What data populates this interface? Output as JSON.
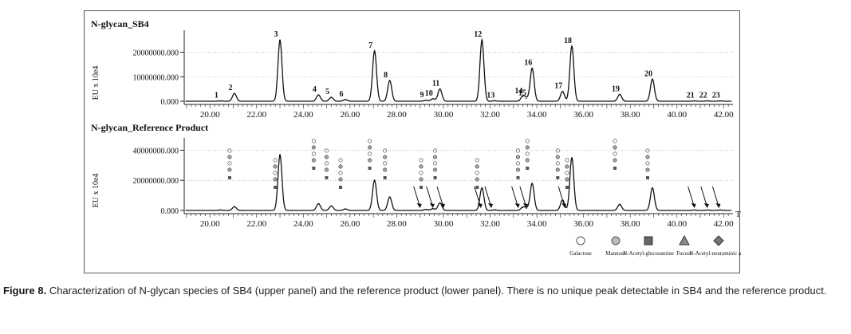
{
  "caption": {
    "figure_label": "Figure 8.",
    "text": "Characterization of N-glycan species of SB4 (upper panel) and the reference product (lower panel). There is no unique peak detectable in SB4 and the reference product."
  },
  "chart_data": [
    {
      "type": "line",
      "title": "N-glycan_SB4",
      "ylabel": "EU x 10e4",
      "xlabel": "",
      "xlim": [
        18.9,
        42.4
      ],
      "ylim": [
        0,
        27000000
      ],
      "yticks": [
        "0.000",
        "10000000.000",
        "20000000.000"
      ],
      "ytick_values": [
        0,
        10000000,
        20000000
      ],
      "xticks": [
        "20.00",
        "22.00",
        "24.00",
        "26.00",
        "28.00",
        "30.00",
        "32.00",
        "34.00",
        "36.00",
        "38.00",
        "40.00",
        "42.00"
      ],
      "xtick_values": [
        20,
        22,
        24,
        26,
        28,
        30,
        32,
        34,
        36,
        38,
        40,
        42
      ],
      "peaks": [
        {
          "label": "1",
          "x": 20.45,
          "y": 150000
        },
        {
          "label": "2",
          "x": 21.05,
          "y": 3200000
        },
        {
          "label": "3",
          "x": 23.0,
          "y": 25000000
        },
        {
          "label": "4",
          "x": 24.65,
          "y": 2600000
        },
        {
          "label": "5",
          "x": 25.2,
          "y": 1600000
        },
        {
          "label": "6",
          "x": 25.8,
          "y": 700000
        },
        {
          "label": "7",
          "x": 27.05,
          "y": 20500000
        },
        {
          "label": "8",
          "x": 27.7,
          "y": 8500000
        },
        {
          "label": "9",
          "x": 29.25,
          "y": 400000
        },
        {
          "label": "10",
          "x": 29.55,
          "y": 1000000
        },
        {
          "label": "11",
          "x": 29.85,
          "y": 5000000
        },
        {
          "label": "12",
          "x": 31.65,
          "y": 25000000
        },
        {
          "label": "13",
          "x": 32.2,
          "y": 200000
        },
        {
          "label": "14",
          "x": 33.4,
          "y": 2000000
        },
        {
          "label": "15",
          "x": 33.55,
          "y": 1200000
        },
        {
          "label": "16",
          "x": 33.8,
          "y": 13500000
        },
        {
          "label": "17",
          "x": 35.1,
          "y": 4000000
        },
        {
          "label": "18",
          "x": 35.5,
          "y": 22500000
        },
        {
          "label": "19",
          "x": 37.55,
          "y": 2800000
        },
        {
          "label": "20",
          "x": 38.95,
          "y": 9000000
        },
        {
          "label": "21",
          "x": 40.75,
          "y": 150000
        },
        {
          "label": "22",
          "x": 41.3,
          "y": 150000
        },
        {
          "label": "23",
          "x": 41.85,
          "y": 150000
        }
      ]
    },
    {
      "type": "line",
      "title": "N-glycan_Reference Product",
      "ylabel": "EU x 10e4",
      "xlabel": "Time",
      "xlim": [
        18.9,
        42.4
      ],
      "ylim": [
        0,
        45000000
      ],
      "yticks": [
        "0.000",
        "20000000.000",
        "40000000.000"
      ],
      "ytick_values": [
        0,
        20000000,
        40000000
      ],
      "xticks": [
        "20.00",
        "22.00",
        "24.00",
        "26.00",
        "28.00",
        "30.00",
        "32.00",
        "34.00",
        "36.00",
        "38.00",
        "40.00",
        "42.00"
      ],
      "xtick_values": [
        20,
        22,
        24,
        26,
        28,
        30,
        32,
        34,
        36,
        38,
        40,
        42
      ],
      "peaks": [
        {
          "x": 20.45,
          "y": 300000
        },
        {
          "x": 21.05,
          "y": 2500000
        },
        {
          "x": 23.0,
          "y": 37000000
        },
        {
          "x": 24.65,
          "y": 4500000
        },
        {
          "x": 25.2,
          "y": 3000000
        },
        {
          "x": 25.8,
          "y": 1000000
        },
        {
          "x": 27.05,
          "y": 20000000
        },
        {
          "x": 27.7,
          "y": 9000000
        },
        {
          "x": 29.25,
          "y": 700000
        },
        {
          "x": 29.55,
          "y": 1200000
        },
        {
          "x": 29.85,
          "y": 5000000
        },
        {
          "x": 31.65,
          "y": 15000000
        },
        {
          "x": 32.2,
          "y": 400000
        },
        {
          "x": 33.4,
          "y": 2000000
        },
        {
          "x": 33.55,
          "y": 1500000
        },
        {
          "x": 33.8,
          "y": 18000000
        },
        {
          "x": 35.1,
          "y": 7000000
        },
        {
          "x": 35.5,
          "y": 35000000
        },
        {
          "x": 37.55,
          "y": 4000000
        },
        {
          "x": 38.95,
          "y": 15000000
        },
        {
          "x": 40.75,
          "y": 300000
        },
        {
          "x": 41.3,
          "y": 300000
        },
        {
          "x": 41.85,
          "y": 300000
        }
      ]
    }
  ],
  "legend": [
    {
      "label": "Galactose",
      "shape": "circle",
      "color": "#ffffff"
    },
    {
      "label": "Mannose",
      "shape": "circle",
      "color": "#bbbbbb"
    },
    {
      "label": "N-Acetyl-glucosamine",
      "shape": "square",
      "color": "#666666"
    },
    {
      "label": "Fucose",
      "shape": "triangle",
      "color": "#888888"
    },
    {
      "label": "N-Acetyl-neuraminic acid",
      "shape": "diamond",
      "color": "#777777"
    }
  ],
  "glycan_arrows_x": [
    29.0,
    29.55,
    30.0,
    31.6,
    32.05,
    33.2,
    33.55,
    35.2,
    40.75,
    41.3,
    41.8
  ]
}
